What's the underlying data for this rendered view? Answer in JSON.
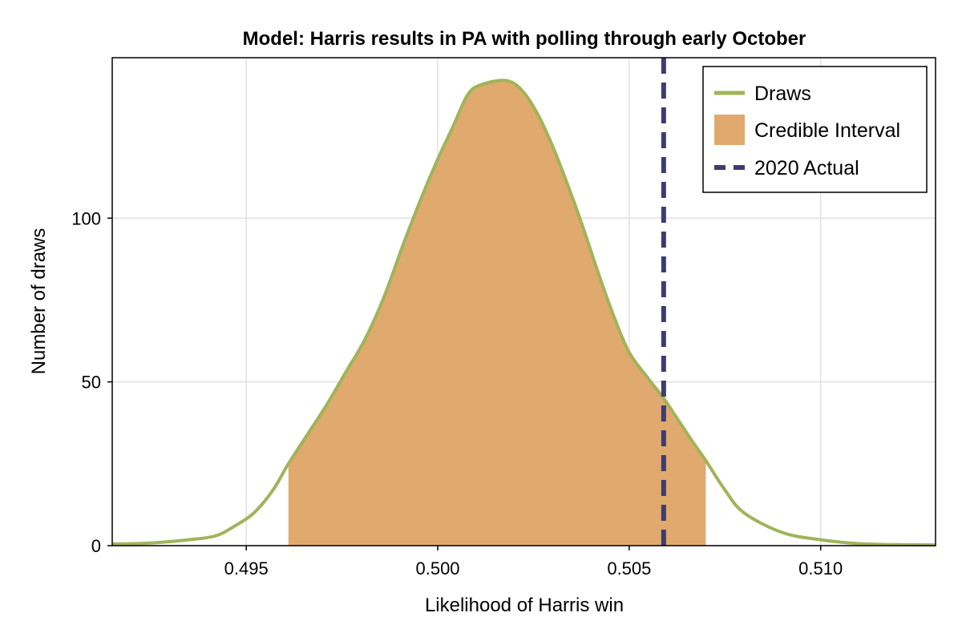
{
  "chart_data": {
    "type": "area",
    "title": "Model: Harris results in PA with polling through early October",
    "xlabel": "Likelihood of Harris win",
    "ylabel": "Number of draws",
    "xlim": [
      0.4915,
      0.513
    ],
    "ylim": [
      0,
      149
    ],
    "xticks": [
      0.495,
      0.5,
      0.505,
      0.51
    ],
    "xtick_labels": [
      "0.495",
      "0.500",
      "0.505",
      "0.510"
    ],
    "yticks": [
      0,
      50,
      100
    ],
    "ytick_labels": [
      "0",
      "50",
      "100"
    ],
    "grid": true,
    "legend_position": "top-right",
    "series": [
      {
        "name": "Draws",
        "kind": "density-line",
        "color": "#a0b45a",
        "x": [
          0.4915,
          0.4925,
          0.4935,
          0.4942,
          0.4947,
          0.4952,
          0.4957,
          0.4961,
          0.4966,
          0.4971,
          0.4976,
          0.4981,
          0.4986,
          0.4991,
          0.4996,
          0.5,
          0.5004,
          0.5008,
          0.5012,
          0.5018,
          0.5022,
          0.5026,
          0.503,
          0.5034,
          0.5038,
          0.5042,
          0.5046,
          0.505,
          0.5055,
          0.5059,
          0.5063,
          0.5067,
          0.507,
          0.5075,
          0.508,
          0.509,
          0.51,
          0.511,
          0.512,
          0.513
        ],
        "y": [
          0.5,
          0.8,
          1.8,
          3,
          6,
          10,
          17,
          25,
          34,
          43,
          53,
          63,
          76,
          92,
          107,
          118,
          128,
          138,
          141,
          142,
          139,
          132,
          122,
          110,
          97,
          83,
          70,
          59,
          51,
          45,
          38,
          31,
          26,
          17,
          10,
          4,
          1.8,
          0.6,
          0.3,
          0.2
        ]
      },
      {
        "name": "Credible Interval",
        "kind": "shaded-interval",
        "color": "#e0a96e",
        "from": 0.4961,
        "to": 0.507
      },
      {
        "name": "2020 Actual",
        "kind": "vertical-dashed-line",
        "color": "#3e3c6e",
        "x": 0.5059
      }
    ]
  }
}
